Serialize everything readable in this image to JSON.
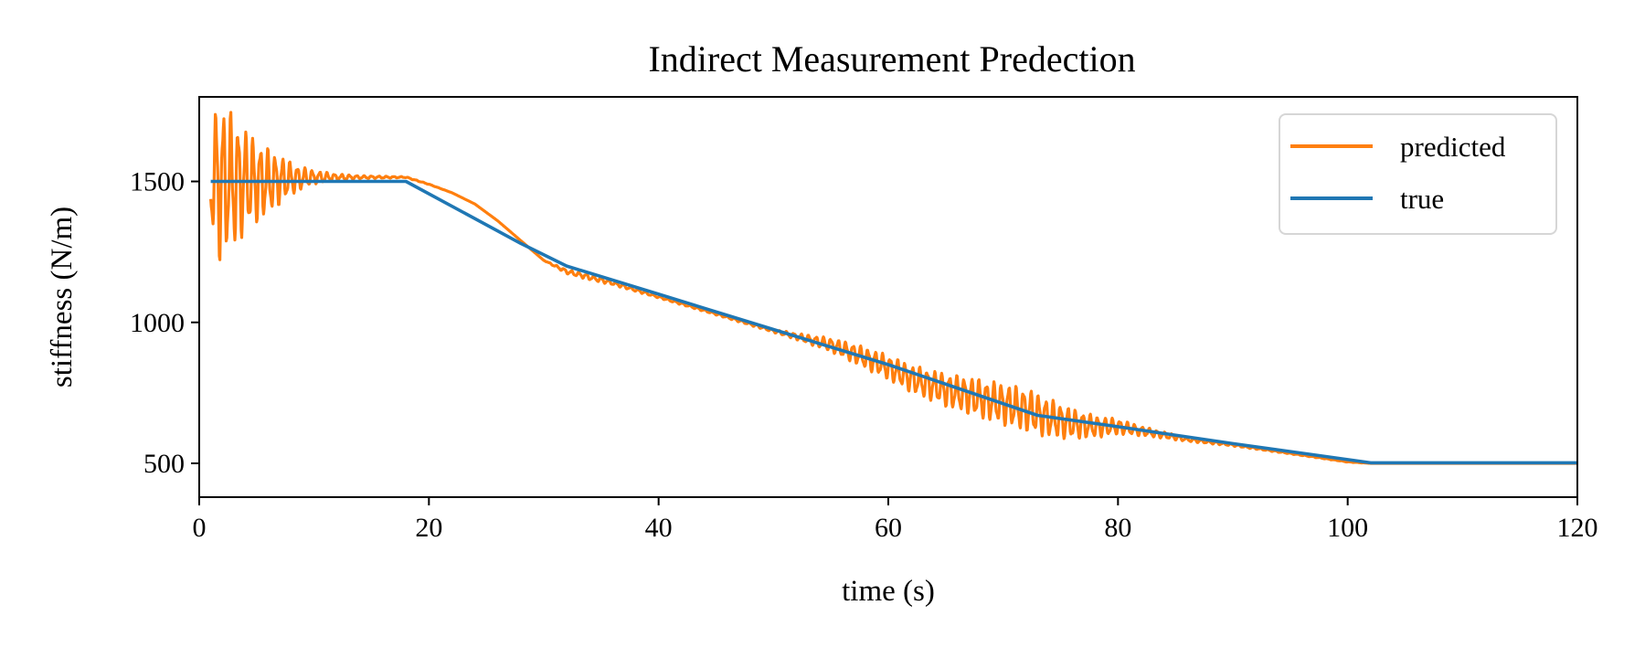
{
  "chart_data": {
    "type": "line",
    "title": "Indirect Measurement Predection",
    "xlabel": "time (s)",
    "ylabel": "stiffness (N/m)",
    "xlim": [
      0,
      120
    ],
    "ylim": [
      380,
      1800
    ],
    "xticks": [
      0,
      20,
      40,
      60,
      80,
      100,
      120
    ],
    "yticks": [
      500,
      1000,
      1500
    ],
    "grid": false,
    "legend": {
      "position": "top-right"
    },
    "series": [
      {
        "name": "predicted",
        "color": "#ff7f0e",
        "oscillating": true,
        "x": [
          1,
          1.5,
          2,
          3,
          4,
          5,
          6,
          7,
          8,
          9,
          10,
          12,
          14,
          16,
          18,
          20,
          22,
          24,
          26,
          28,
          30,
          32,
          34,
          36,
          40,
          45,
          50,
          52,
          55,
          57,
          60,
          62,
          65,
          68,
          70,
          72,
          74,
          76,
          78,
          80,
          82,
          84,
          86,
          90,
          95,
          100,
          102,
          110,
          120
        ],
        "y": [
          1500,
          1500,
          1500,
          1500,
          1500,
          1500,
          1500,
          1505,
          1510,
          1512,
          1515,
          1515,
          1515,
          1515,
          1515,
          1490,
          1460,
          1420,
          1360,
          1290,
          1220,
          1180,
          1160,
          1140,
          1090,
          1030,
          970,
          950,
          920,
          890,
          840,
          800,
          760,
          730,
          710,
          690,
          660,
          640,
          630,
          630,
          615,
          600,
          585,
          565,
          535,
          505,
          500,
          500,
          500
        ],
        "amplitude": [
          150,
          300,
          280,
          240,
          190,
          150,
          120,
          90,
          60,
          40,
          25,
          12,
          6,
          4,
          2,
          1,
          0,
          0,
          0,
          0,
          0,
          8,
          10,
          8,
          4,
          4,
          6,
          12,
          25,
          35,
          45,
          50,
          60,
          70,
          75,
          78,
          70,
          55,
          40,
          28,
          18,
          12,
          8,
          4,
          2,
          1,
          0,
          0,
          0
        ]
      },
      {
        "name": "true",
        "color": "#1f77b4",
        "x": [
          1,
          18,
          28,
          32,
          40,
          50,
          60,
          73,
          80,
          90,
          102,
          120
        ],
        "y": [
          1500,
          1500,
          1280,
          1200,
          1100,
          975,
          850,
          670,
          630,
          570,
          502,
          502
        ]
      }
    ]
  }
}
